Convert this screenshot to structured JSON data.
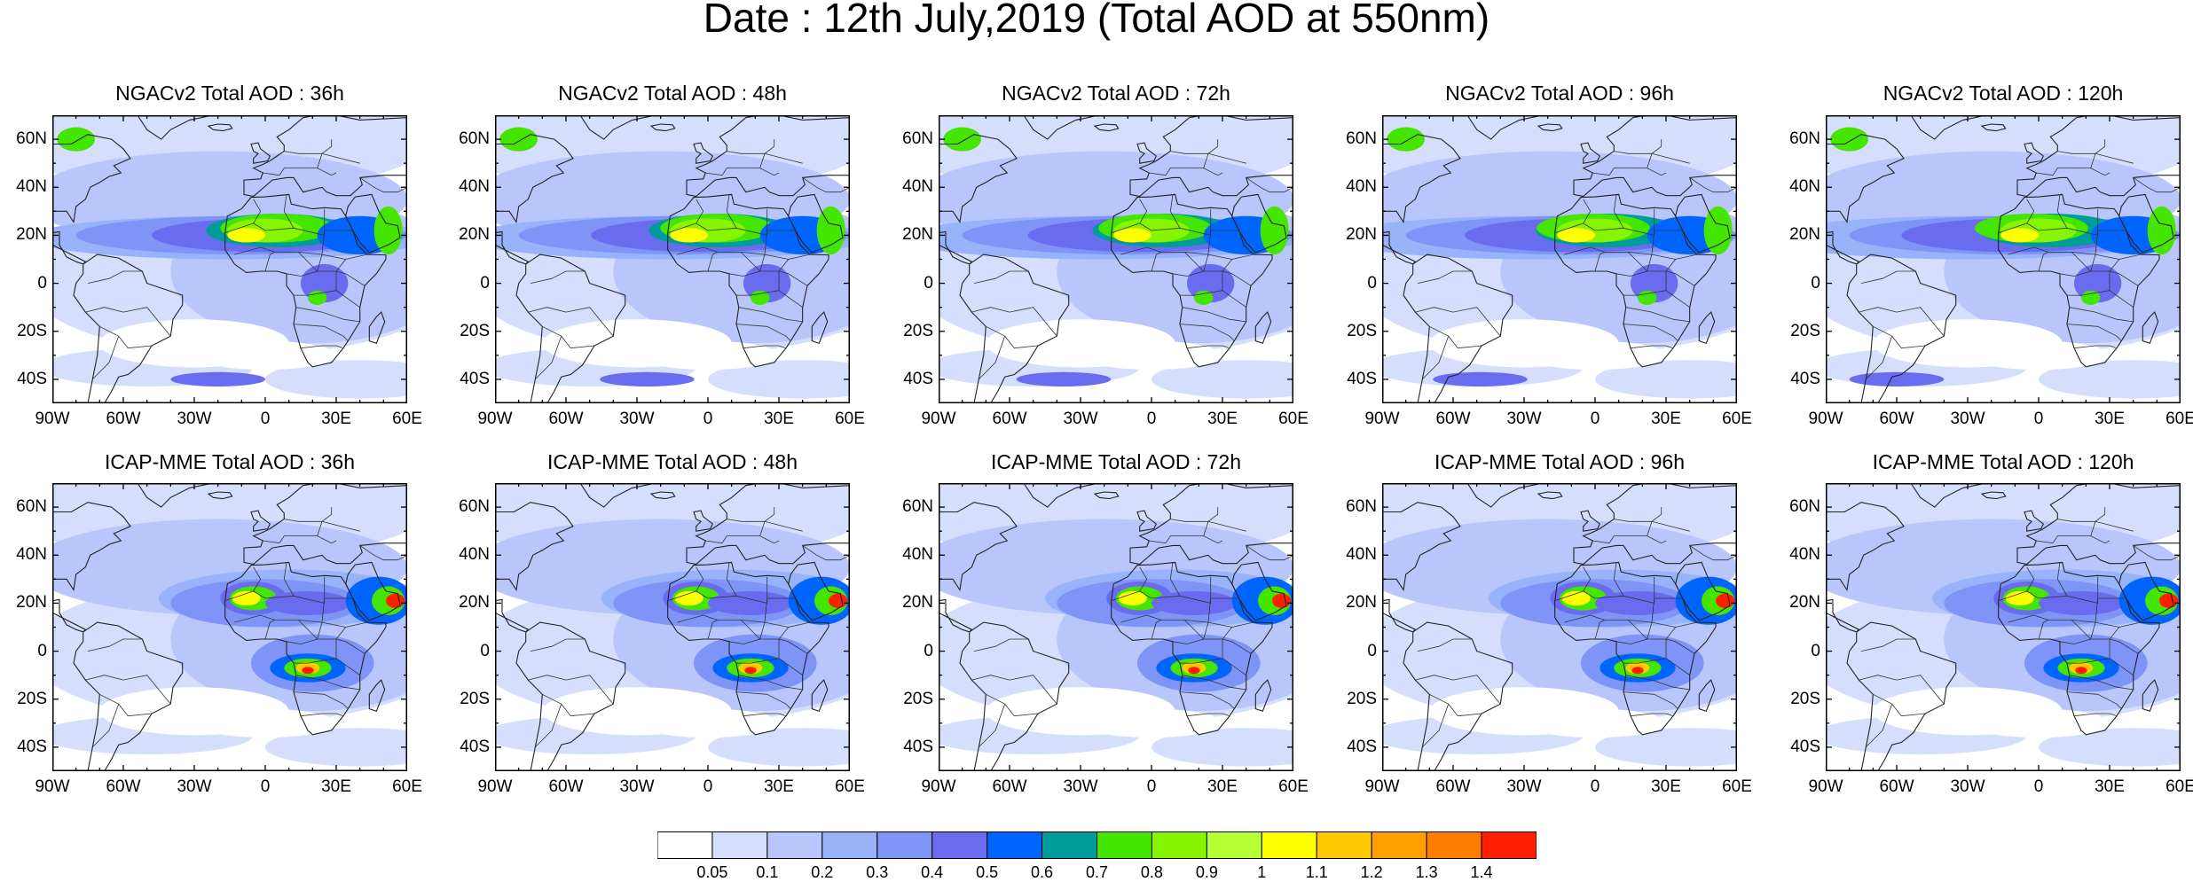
{
  "title": "Date : 12th July,2019 (Total AOD at 550nm)",
  "panels": [
    {
      "title": "NGACv2 Total AOD : 36h",
      "model": "ngac",
      "lead": 36
    },
    {
      "title": "NGACv2 Total AOD : 48h",
      "model": "ngac",
      "lead": 48
    },
    {
      "title": "NGACv2 Total AOD : 72h",
      "model": "ngac",
      "lead": 72
    },
    {
      "title": "NGACv2 Total AOD : 96h",
      "model": "ngac",
      "lead": 96
    },
    {
      "title": "NGACv2 Total AOD : 120h",
      "model": "ngac",
      "lead": 120
    },
    {
      "title": "ICAP-MME Total AOD : 36h",
      "model": "icap",
      "lead": 36
    },
    {
      "title": "ICAP-MME Total AOD : 48h",
      "model": "icap",
      "lead": 48
    },
    {
      "title": "ICAP-MME Total AOD : 72h",
      "model": "icap",
      "lead": 72
    },
    {
      "title": "ICAP-MME Total AOD : 96h",
      "model": "icap",
      "lead": 96
    },
    {
      "title": "ICAP-MME Total AOD : 120h",
      "model": "icap",
      "lead": 120
    }
  ],
  "lat_labels": [
    "60N",
    "40N",
    "20N",
    "0",
    "20S",
    "40S"
  ],
  "lat_values": [
    60,
    40,
    20,
    0,
    -20,
    -40
  ],
  "lon_labels": [
    "90W",
    "60W",
    "30W",
    "0",
    "30E",
    "60E"
  ],
  "lon_values": [
    -90,
    -60,
    -30,
    0,
    30,
    60
  ],
  "lat_range": [
    -50,
    70
  ],
  "lon_range": [
    -90,
    60
  ],
  "colorbar": {
    "colors": [
      "#ffffff",
      "#d5defc",
      "#b8c6fb",
      "#98b3fa",
      "#7f94f7",
      "#6a6cf0",
      "#0064ff",
      "#009b9b",
      "#44e600",
      "#87f500",
      "#b6ff32",
      "#ffff00",
      "#ffc800",
      "#ffa000",
      "#ff7d00",
      "#ff1e00"
    ],
    "labels": [
      "0.05",
      "0.1",
      "0.2",
      "0.3",
      "0.4",
      "0.5",
      "0.6",
      "0.7",
      "0.8",
      "0.9",
      "1",
      "1.1",
      "1.2",
      "1.3",
      "1.4"
    ]
  }
}
